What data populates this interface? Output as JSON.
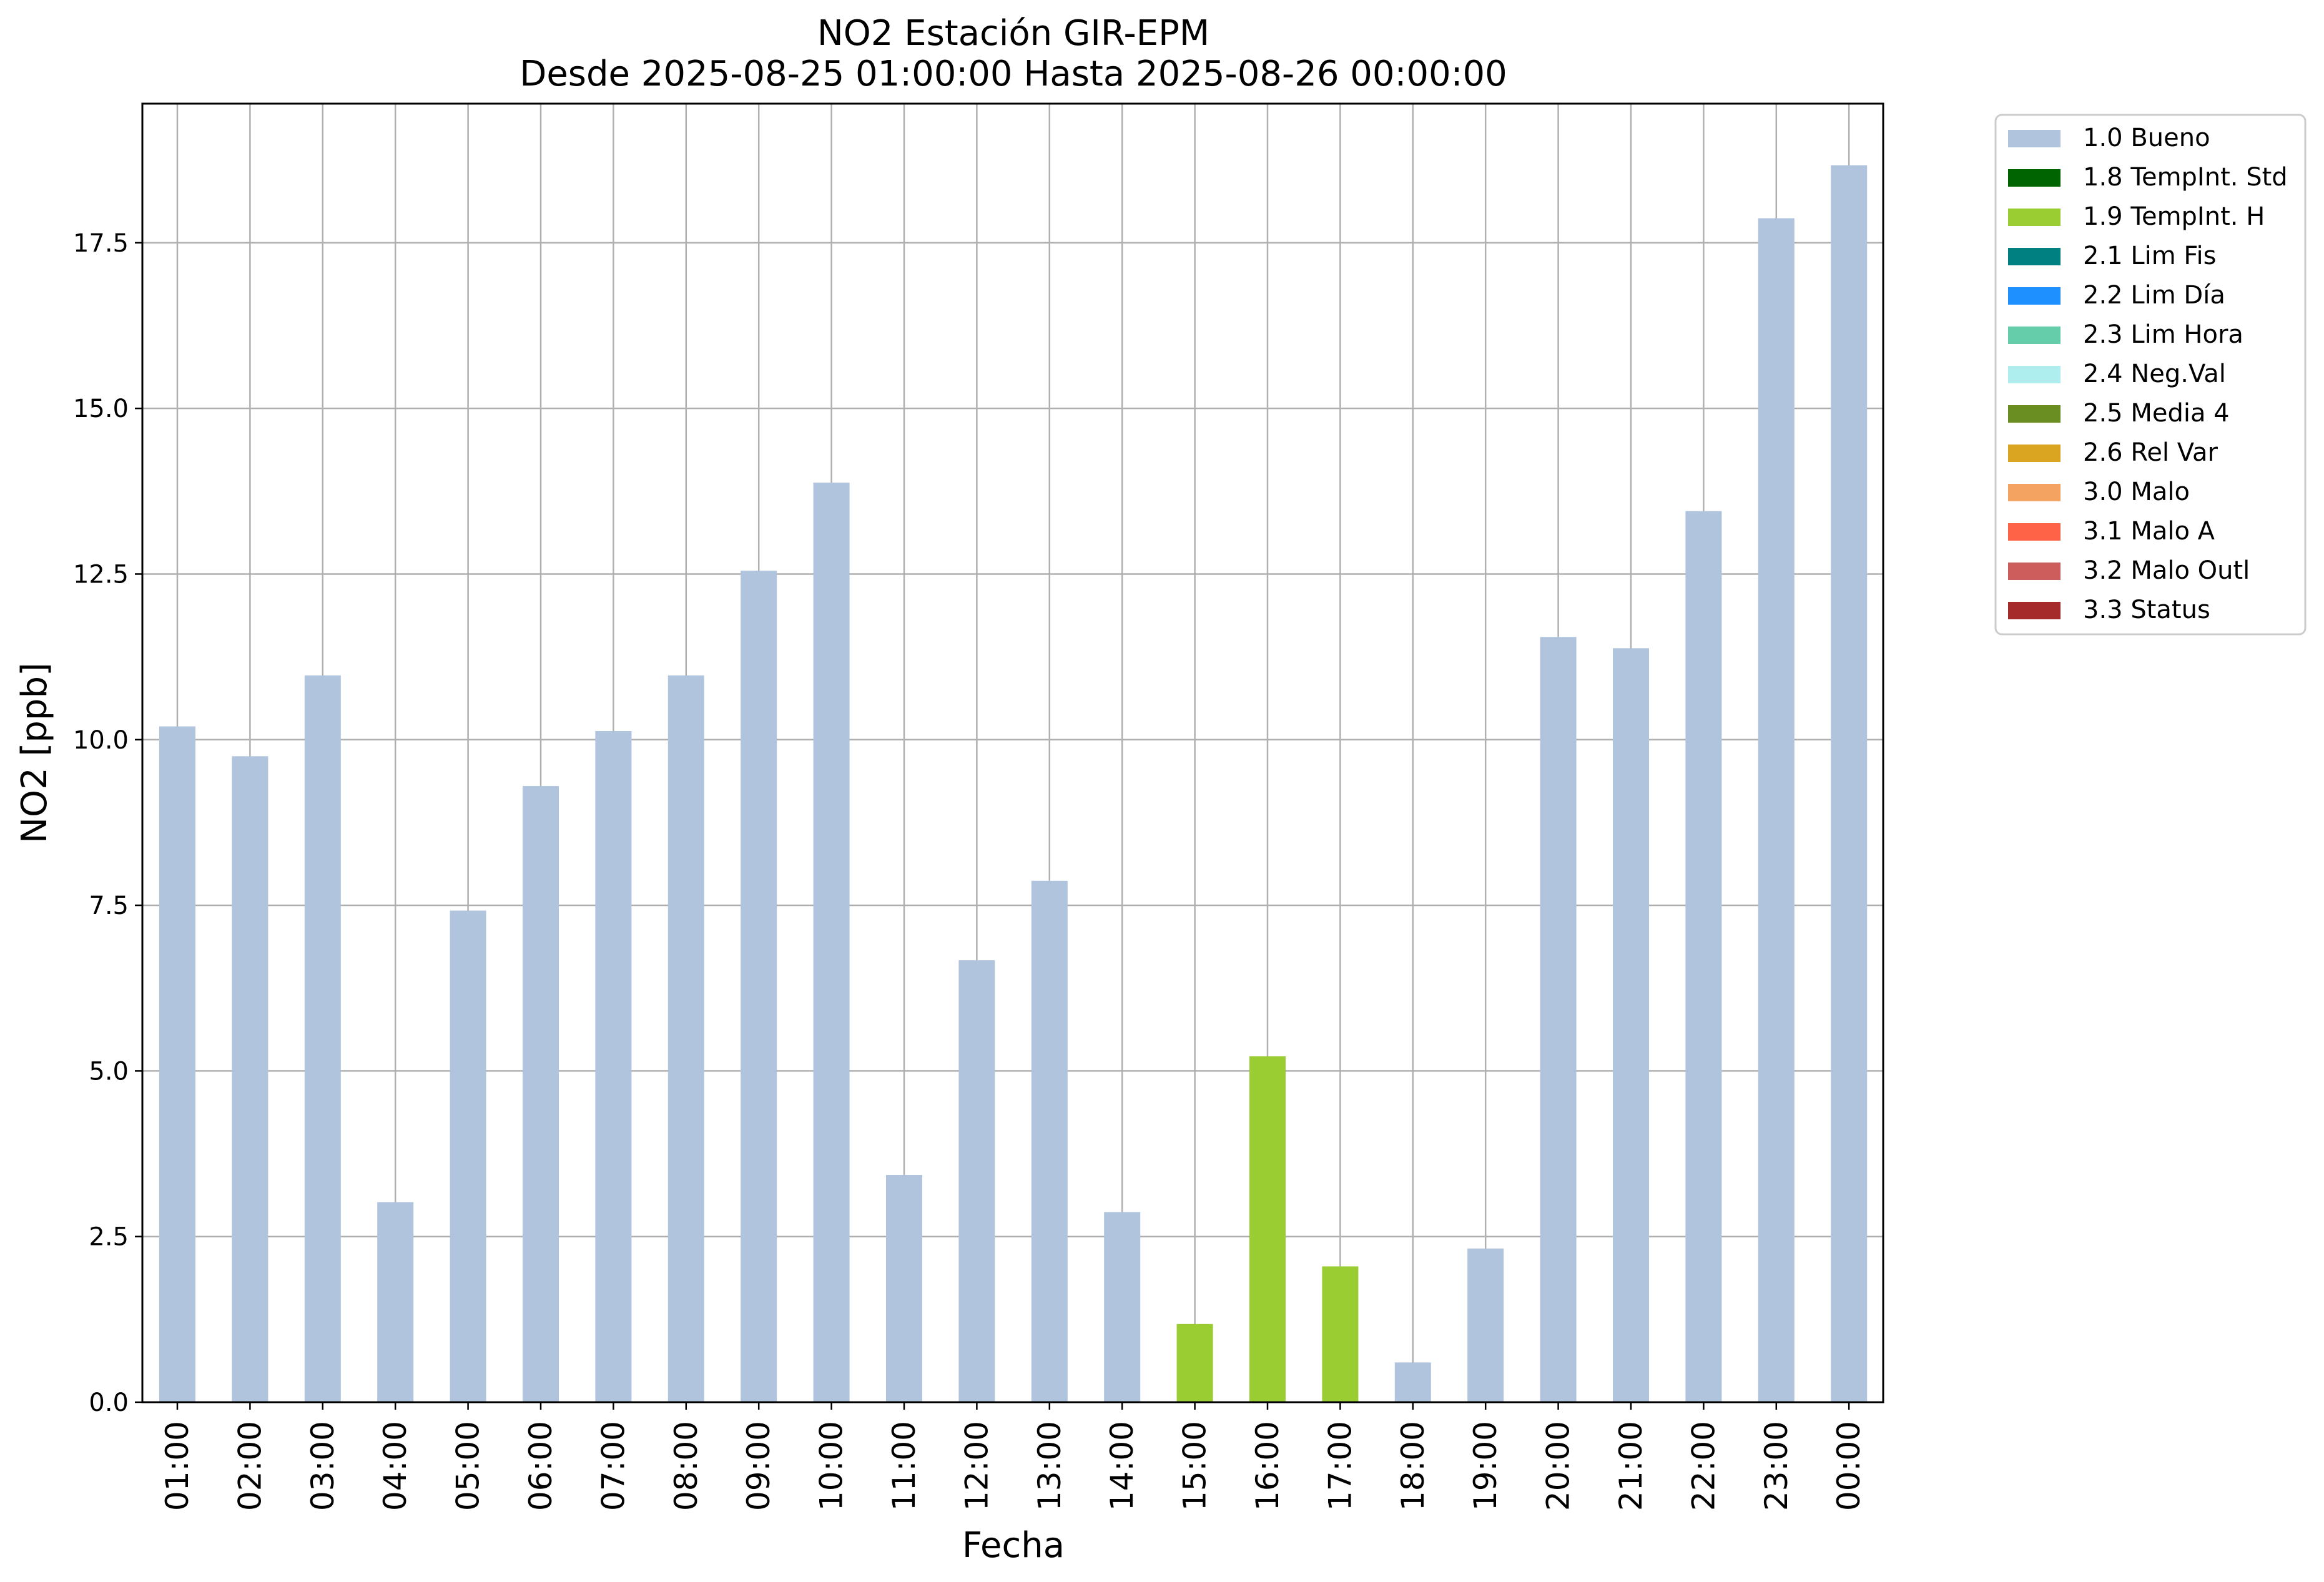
{
  "chart_data": {
    "type": "bar",
    "title": "NO2 Estación GIR-EPM",
    "subtitle": "Desde 2025-08-25 01:00:00 Hasta 2025-08-26 00:00:00",
    "xlabel": "Fecha",
    "ylabel": "NO2 [ppb]",
    "ylim": [
      0,
      19.6
    ],
    "yticks": [
      "0.0",
      "2.5",
      "5.0",
      "7.5",
      "10.0",
      "12.5",
      "15.0",
      "17.5"
    ],
    "grid": true,
    "legend_position": "outside-top-right",
    "categories": [
      "01:00",
      "02:00",
      "03:00",
      "04:00",
      "05:00",
      "06:00",
      "07:00",
      "08:00",
      "09:00",
      "10:00",
      "11:00",
      "12:00",
      "13:00",
      "14:00",
      "15:00",
      "16:00",
      "17:00",
      "18:00",
      "19:00",
      "20:00",
      "21:00",
      "22:00",
      "23:00",
      "00:00"
    ],
    "values": [
      10.2,
      9.75,
      10.97,
      3.02,
      7.42,
      9.3,
      10.13,
      10.97,
      12.55,
      13.88,
      3.43,
      6.67,
      7.87,
      2.87,
      1.18,
      5.22,
      2.05,
      0.6,
      2.32,
      11.55,
      11.38,
      13.45,
      17.87,
      18.67
    ],
    "flags": [
      "1.0 Bueno",
      "1.0 Bueno",
      "1.0 Bueno",
      "1.0 Bueno",
      "1.0 Bueno",
      "1.0 Bueno",
      "1.0 Bueno",
      "1.0 Bueno",
      "1.0 Bueno",
      "1.0 Bueno",
      "1.0 Bueno",
      "1.0 Bueno",
      "1.0 Bueno",
      "1.0 Bueno",
      "1.9 TempInt. H",
      "1.9 TempInt. H",
      "1.9 TempInt. H",
      "1.0 Bueno",
      "1.0 Bueno",
      "1.0 Bueno",
      "1.0 Bueno",
      "1.0 Bueno",
      "1.0 Bueno",
      "1.0 Bueno"
    ],
    "legend": [
      {
        "label": "1.0 Bueno",
        "color": "#b0c4de"
      },
      {
        "label": "1.8 TempInt. Std",
        "color": "#006400"
      },
      {
        "label": "1.9 TempInt. H",
        "color": "#9acd32"
      },
      {
        "label": "2.1 Lim Fis",
        "color": "#008080"
      },
      {
        "label": "2.2 Lim Día",
        "color": "#1e90ff"
      },
      {
        "label": "2.3 Lim Hora",
        "color": "#66cdaa"
      },
      {
        "label": "2.4 Neg.Val",
        "color": "#afeeee"
      },
      {
        "label": "2.5 Media 4",
        "color": "#6b8e23"
      },
      {
        "label": "2.6 Rel Var",
        "color": "#daa520"
      },
      {
        "label": "3.0 Malo",
        "color": "#f4a460"
      },
      {
        "label": "3.1 Malo A",
        "color": "#ff6347"
      },
      {
        "label": "3.2 Malo Outl",
        "color": "#cd5c5c"
      },
      {
        "label": "3.3 Status",
        "color": "#a52a2a"
      }
    ]
  }
}
